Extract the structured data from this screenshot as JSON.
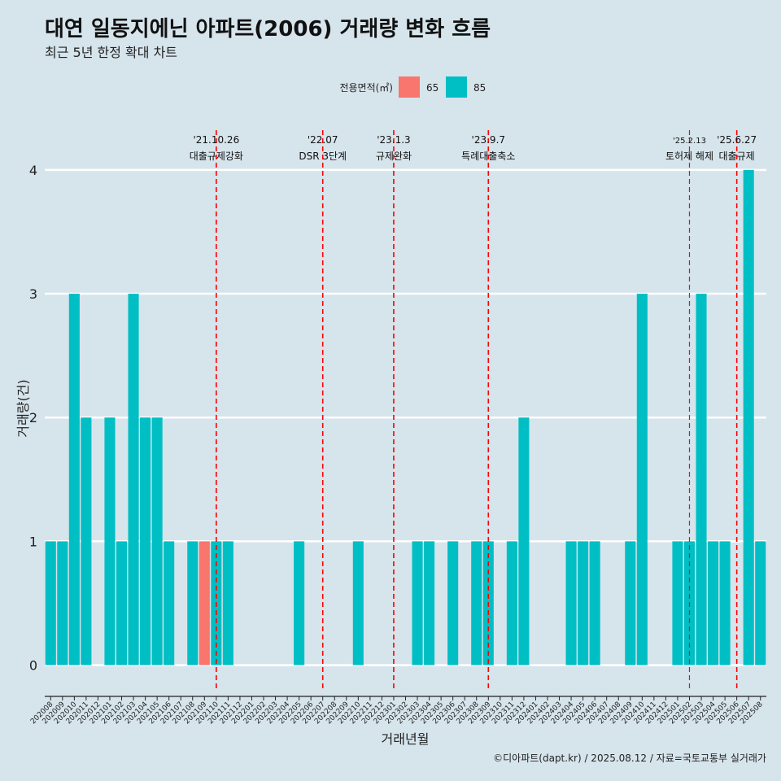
{
  "colors": {
    "background": "#d6e4ec",
    "s65": "#f8766d",
    "s85": "#00bfc4",
    "grid": "#ffffff",
    "event": "#ff0000"
  },
  "chart_data": {
    "type": "bar",
    "title": "대연 일동지에닌 아파트(2006) 거래량 변화 흐름",
    "subtitle": "최근 5년 한정 확대 차트",
    "xlabel": "거래년월",
    "ylabel": "거래량(건)",
    "legend_title": "전용면적(㎡)",
    "legend_position": "top",
    "caption": "©디아파트(dapt.kr) / 2025.08.12 / 자료=국토교통부 실거래가",
    "ylim": [
      -0.2,
      4.4
    ],
    "yticks": [
      0,
      1,
      2,
      3,
      4
    ],
    "categories": [
      "202008",
      "202009",
      "202010",
      "202011",
      "202012",
      "202101",
      "202102",
      "202103",
      "202104",
      "202105",
      "202106",
      "202107",
      "202108",
      "202109",
      "202110",
      "202111",
      "202112",
      "202201",
      "202202",
      "202203",
      "202204",
      "202205",
      "202206",
      "202207",
      "202208",
      "202209",
      "202210",
      "202211",
      "202212",
      "202301",
      "202302",
      "202303",
      "202304",
      "202305",
      "202306",
      "202307",
      "202308",
      "202309",
      "202310",
      "202311",
      "202312",
      "202401",
      "202402",
      "202403",
      "202404",
      "202405",
      "202406",
      "202407",
      "202408",
      "202409",
      "202410",
      "202411",
      "202412",
      "202501",
      "202502",
      "202503",
      "202504",
      "202505",
      "202506",
      "202507",
      "202508"
    ],
    "series": [
      {
        "name": "65",
        "values": [
          0,
          0,
          0,
          0,
          0,
          0,
          0,
          0,
          0,
          0,
          0,
          0,
          0,
          1,
          0,
          0,
          0,
          0,
          0,
          0,
          0,
          0,
          0,
          0,
          0,
          0,
          0,
          0,
          0,
          0,
          0,
          0,
          0,
          0,
          0,
          0,
          0,
          0,
          0,
          0,
          0,
          0,
          0,
          0,
          0,
          0,
          0,
          0,
          0,
          0,
          0,
          0,
          0,
          0,
          0,
          0,
          0,
          0,
          0,
          0,
          0
        ]
      },
      {
        "name": "85",
        "values": [
          1,
          1,
          3,
          2,
          0,
          2,
          1,
          3,
          2,
          2,
          1,
          0,
          1,
          0,
          1,
          1,
          0,
          0,
          0,
          0,
          0,
          1,
          0,
          0,
          0,
          0,
          1,
          0,
          0,
          0,
          0,
          1,
          1,
          0,
          1,
          0,
          1,
          1,
          0,
          1,
          2,
          0,
          0,
          0,
          1,
          1,
          1,
          0,
          0,
          1,
          3,
          0,
          0,
          1,
          1,
          3,
          1,
          1,
          0,
          4,
          1
        ]
      }
    ],
    "events": [
      {
        "at": "202110",
        "date": "'21.10.26",
        "label": "대출규제강화",
        "small": false
      },
      {
        "at": "202207",
        "date": "'22.07",
        "label": "DSR 3단계",
        "small": false
      },
      {
        "at": "202301",
        "date": "'23.1.3",
        "label": "규제완화",
        "small": false
      },
      {
        "at": "202309",
        "date": "'23.9.7",
        "label": "특례대출축소",
        "small": false
      },
      {
        "at": "202502",
        "date": "'25.2.13",
        "label": "토허제 해제",
        "small": true
      },
      {
        "at": "202506",
        "date": "'25.6.27",
        "label": "대출규제",
        "small": false
      }
    ]
  }
}
